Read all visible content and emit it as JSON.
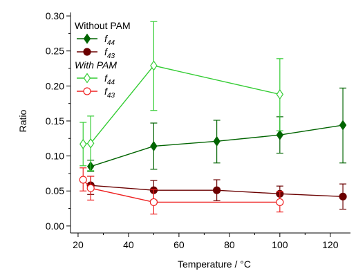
{
  "chart_data": {
    "type": "line",
    "xlabel": "Temperature / °C",
    "ylabel": "Ratio",
    "xlim": [
      17,
      128
    ],
    "ylim": [
      -0.01,
      0.305
    ],
    "x_ticks": [
      20,
      40,
      60,
      80,
      100,
      120
    ],
    "y_ticks": [
      0.0,
      0.05,
      0.1,
      0.15,
      0.2,
      0.25,
      0.3
    ],
    "grid": false,
    "legend_position": "top-left",
    "legend_groups": [
      {
        "title": "Without PAM",
        "italic": false,
        "series_idx": [
          0,
          1
        ]
      },
      {
        "title": "With PAM",
        "italic": true,
        "series_idx": [
          2,
          3
        ]
      }
    ],
    "series": [
      {
        "name": "f44",
        "name_base": "f",
        "name_sub": "44",
        "color": "#006400",
        "marker": "diamond",
        "filled": true,
        "x": [
          25,
          50,
          75,
          100,
          125
        ],
        "y": [
          0.085,
          0.114,
          0.121,
          0.13,
          0.144
        ],
        "err_low": [
          0.078,
          0.081,
          0.09,
          0.104,
          0.09
        ],
        "err_high": [
          0.094,
          0.147,
          0.151,
          0.156,
          0.197
        ]
      },
      {
        "name": "f43",
        "name_base": "f",
        "name_sub": "43",
        "color": "#6b0000",
        "marker": "circle",
        "filled": true,
        "x": [
          25,
          50,
          75,
          100,
          125
        ],
        "y": [
          0.058,
          0.051,
          0.051,
          0.046,
          0.042
        ],
        "err_low": [
          0.045,
          0.037,
          0.036,
          0.035,
          0.024
        ],
        "err_high": [
          0.071,
          0.065,
          0.066,
          0.057,
          0.06
        ]
      },
      {
        "name": "f44",
        "name_base": "f",
        "name_sub": "44",
        "color": "#33cc33",
        "marker": "diamond",
        "filled": false,
        "x": [
          22,
          25,
          50,
          100
        ],
        "y": [
          0.117,
          0.118,
          0.229,
          0.188
        ],
        "err_low": [
          0.086,
          0.079,
          0.165,
          0.136
        ],
        "err_high": [
          0.148,
          0.157,
          0.292,
          0.239
        ]
      },
      {
        "name": "f43",
        "name_base": "f",
        "name_sub": "43",
        "color": "#ee2020",
        "marker": "circle",
        "filled": false,
        "x": [
          22,
          25,
          50,
          100
        ],
        "y": [
          0.066,
          0.054,
          0.034,
          0.034
        ],
        "err_low": [
          0.05,
          0.037,
          0.017,
          0.02
        ],
        "err_high": [
          0.083,
          0.071,
          0.052,
          0.049
        ]
      }
    ]
  }
}
